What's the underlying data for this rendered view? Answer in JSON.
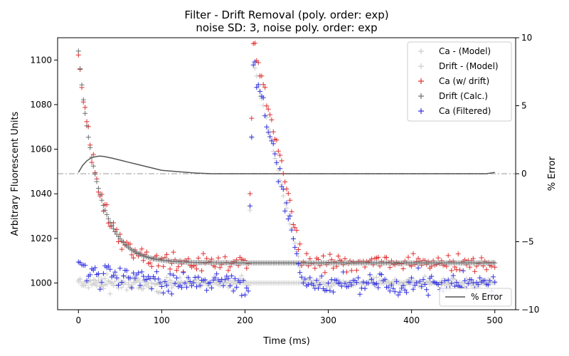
{
  "chart_data": {
    "type": "scatter",
    "title_line1": "Filter - Drift Removal (poly. order: exp)",
    "title_line2": "noise SD: 3, noise poly. order: exp",
    "xlabel": "Time (ms)",
    "ylabel": "Arbitrary Fluorescent Units",
    "y2label": "% Error",
    "xlim": [
      -25,
      525
    ],
    "ylim": [
      988,
      1110
    ],
    "y2lim": [
      -10,
      10
    ],
    "xticks": [
      0,
      100,
      200,
      300,
      400,
      500
    ],
    "yticks": [
      1000,
      1020,
      1040,
      1060,
      1080,
      1100
    ],
    "y2ticks": [
      -10,
      -5,
      0,
      5,
      10
    ],
    "grid": false,
    "legend_placement": "top-right",
    "legend2_placement": "bottom-right",
    "params": {
      "t_max": 500,
      "step": 2,
      "baseline": 1000,
      "drift_amp": 104,
      "drift_floor": 1009,
      "drift_tau": 23,
      "spike_start": 204,
      "spike_peak_time": 210,
      "spike_peak": 1099,
      "spike_end": 270,
      "noise_sd": 3
    },
    "series": [
      {
        "name": "Ca - (Model)",
        "color": "#cccccc",
        "marker": "plus"
      },
      {
        "name": "Drift - (Model)",
        "color": "#cccccc",
        "marker": "plus"
      },
      {
        "name": "Ca (w/ drift)",
        "color": "#e03030",
        "marker": "plus"
      },
      {
        "name": "Drift (Calc.)",
        "color": "#707070",
        "marker": "plus"
      },
      {
        "name": "Ca (Filtered)",
        "color": "#3030e0",
        "marker": "plus"
      }
    ],
    "error_series": {
      "name": "% Error",
      "color": "#555555",
      "x": [
        0,
        5,
        10,
        15,
        20,
        25,
        30,
        40,
        50,
        60,
        70,
        80,
        90,
        100,
        120,
        140,
        160,
        200,
        300,
        400,
        490,
        500
      ],
      "y": [
        0.1,
        0.6,
        0.95,
        1.15,
        1.25,
        1.3,
        1.28,
        1.15,
        1.0,
        0.85,
        0.7,
        0.55,
        0.4,
        0.25,
        0.15,
        0.05,
        0.0,
        0.0,
        0.0,
        0.0,
        0.0,
        0.1
      ]
    },
    "zero_line": {
      "y2": 0,
      "color": "#bbbbbb",
      "style": "dashdot"
    }
  }
}
